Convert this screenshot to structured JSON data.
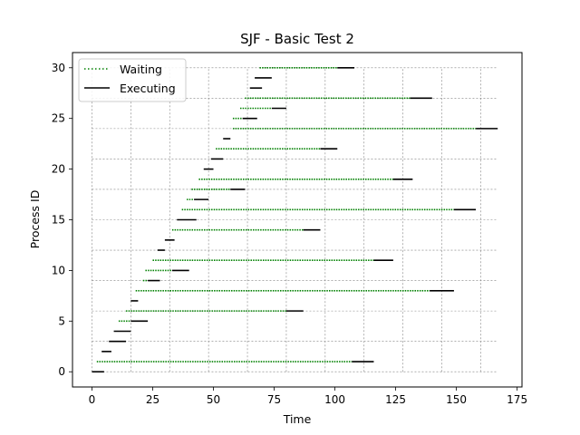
{
  "chart_data": {
    "type": "gantt",
    "title": "SJF - Basic Test 2",
    "xlabel": "Time",
    "ylabel": "Process ID",
    "xlim": [
      -8,
      177
    ],
    "ylim": [
      -1.5,
      31.5
    ],
    "xticks": [
      0,
      25,
      50,
      75,
      100,
      125,
      150,
      175
    ],
    "yticks": [
      0,
      5,
      10,
      15,
      20,
      25,
      30
    ],
    "grid": {
      "x": [
        0,
        16,
        32,
        48,
        64,
        80,
        96,
        112,
        128,
        144,
        160
      ],
      "y": [
        0,
        3,
        6,
        9,
        12,
        15,
        18,
        21,
        24,
        27,
        30
      ],
      "x_extent": [
        0,
        167
      ],
      "y_extent": [
        0,
        30
      ]
    },
    "legend": {
      "position": "upper-left",
      "entries": [
        {
          "label": "Waiting",
          "style": "dotted",
          "color": "#008000"
        },
        {
          "label": "Executing",
          "style": "solid",
          "color": "#000000"
        }
      ]
    },
    "colors": {
      "waiting": "#008000",
      "executing": "#000000"
    },
    "processes": [
      {
        "id": 0,
        "arrival": 0,
        "start": 0,
        "end": 5
      },
      {
        "id": 1,
        "arrival": 2,
        "start": 107,
        "end": 116
      },
      {
        "id": 2,
        "arrival": 4,
        "start": 4,
        "end": 8
      },
      {
        "id": 3,
        "arrival": 7,
        "start": 7,
        "end": 14
      },
      {
        "id": 4,
        "arrival": 9,
        "start": 9,
        "end": 16
      },
      {
        "id": 5,
        "arrival": 11,
        "start": 16,
        "end": 23
      },
      {
        "id": 6,
        "arrival": 14,
        "start": 80,
        "end": 87
      },
      {
        "id": 7,
        "arrival": 16,
        "start": 16,
        "end": 19
      },
      {
        "id": 8,
        "arrival": 18,
        "start": 139,
        "end": 149
      },
      {
        "id": 9,
        "arrival": 21,
        "start": 23,
        "end": 28
      },
      {
        "id": 10,
        "arrival": 22,
        "start": 33,
        "end": 40
      },
      {
        "id": 11,
        "arrival": 25,
        "start": 116,
        "end": 124
      },
      {
        "id": 12,
        "arrival": 27,
        "start": 27,
        "end": 30
      },
      {
        "id": 13,
        "arrival": 30,
        "start": 30,
        "end": 34
      },
      {
        "id": 14,
        "arrival": 33,
        "start": 87,
        "end": 94
      },
      {
        "id": 15,
        "arrival": 35,
        "start": 35,
        "end": 43
      },
      {
        "id": 16,
        "arrival": 37,
        "start": 149,
        "end": 158
      },
      {
        "id": 17,
        "arrival": 39,
        "start": 42,
        "end": 48
      },
      {
        "id": 18,
        "arrival": 41,
        "start": 57,
        "end": 63
      },
      {
        "id": 19,
        "arrival": 44,
        "start": 124,
        "end": 132
      },
      {
        "id": 20,
        "arrival": 46,
        "start": 46,
        "end": 50
      },
      {
        "id": 21,
        "arrival": 49,
        "start": 49,
        "end": 54
      },
      {
        "id": 22,
        "arrival": 51,
        "start": 94,
        "end": 101
      },
      {
        "id": 23,
        "arrival": 54,
        "start": 54,
        "end": 57
      },
      {
        "id": 24,
        "arrival": 58,
        "start": 158,
        "end": 167
      },
      {
        "id": 25,
        "arrival": 58,
        "start": 62,
        "end": 68
      },
      {
        "id": 26,
        "arrival": 61,
        "start": 74,
        "end": 80
      },
      {
        "id": 27,
        "arrival": 63,
        "start": 131,
        "end": 140
      },
      {
        "id": 28,
        "arrival": 65,
        "start": 65,
        "end": 70
      },
      {
        "id": 29,
        "arrival": 67,
        "start": 67,
        "end": 74
      },
      {
        "id": 30,
        "arrival": 69,
        "start": 101,
        "end": 108
      }
    ]
  }
}
